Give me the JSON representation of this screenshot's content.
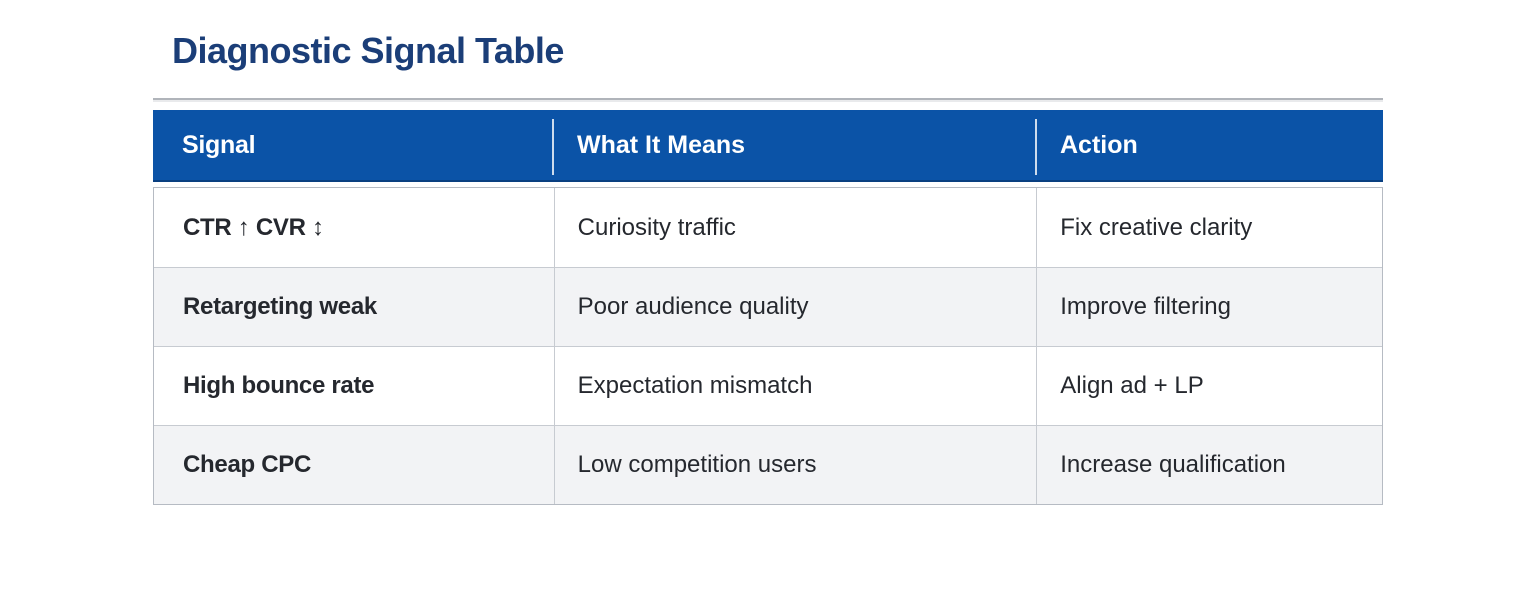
{
  "page": {
    "title": "Diagnostic Signal Table"
  },
  "colors": {
    "title_text": "#1b3e78",
    "header_bg": "#0b53a7",
    "header_text": "#ffffff",
    "body_text": "#25282e",
    "row_alt_bg": "#f2f3f5",
    "border": "#c7cbd1"
  },
  "table": {
    "columns": [
      {
        "label": "Signal"
      },
      {
        "label": "What It Means"
      },
      {
        "label": "Action"
      }
    ],
    "rows": [
      {
        "signal": "CTR ↑ CVR ↕",
        "meaning": "Curiosity traffic",
        "action": "Fix creative clarity"
      },
      {
        "signal": "Retargeting weak",
        "meaning": "Poor audience quality",
        "action": "Improve filtering"
      },
      {
        "signal": "High bounce rate",
        "meaning": "Expectation mismatch",
        "action": "Align ad + LP"
      },
      {
        "signal": "Cheap CPC",
        "meaning": "Low competition users",
        "action": "Increase qualification"
      }
    ]
  }
}
